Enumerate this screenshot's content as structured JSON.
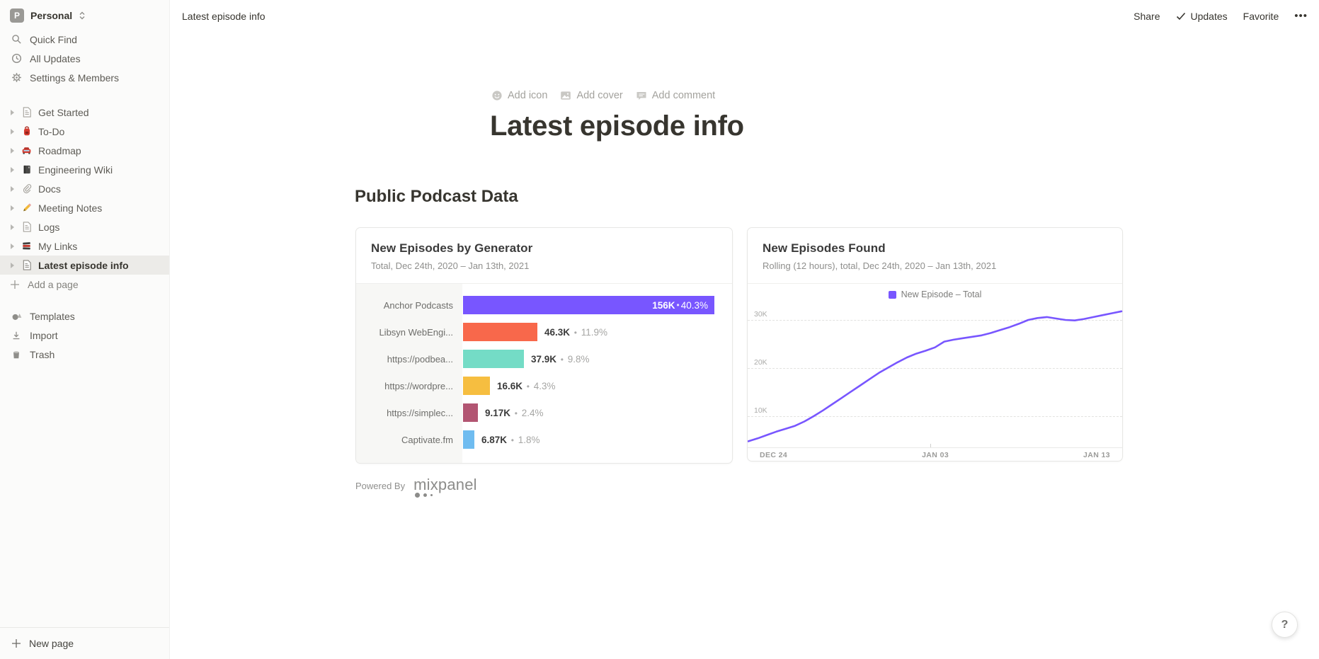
{
  "sidebar": {
    "workspace": {
      "initial": "P",
      "name": "Personal"
    },
    "top_items": [
      {
        "label": "Quick Find"
      },
      {
        "label": "All Updates"
      },
      {
        "label": "Settings & Members"
      }
    ],
    "pages": [
      {
        "label": "Get Started"
      },
      {
        "label": "To-Do"
      },
      {
        "label": "Roadmap"
      },
      {
        "label": "Engineering Wiki"
      },
      {
        "label": "Docs"
      },
      {
        "label": "Meeting Notes"
      },
      {
        "label": "Logs"
      },
      {
        "label": "My Links"
      },
      {
        "label": "Latest episode info"
      }
    ],
    "add_page_label": "Add a page",
    "bottom_items": [
      {
        "label": "Templates"
      },
      {
        "label": "Import"
      },
      {
        "label": "Trash"
      }
    ],
    "new_page_label": "New page"
  },
  "topbar": {
    "breadcrumb": "Latest episode info",
    "share": "Share",
    "updates": "Updates",
    "favorite": "Favorite",
    "more": "•••"
  },
  "page": {
    "add_icon": "Add icon",
    "add_cover": "Add cover",
    "add_comment": "Add comment",
    "title": "Latest episode info",
    "section_heading": "Public Podcast Data",
    "powered_by": "Powered By",
    "brand": "mixpanel"
  },
  "help": {
    "label": "?"
  },
  "chart_data": [
    {
      "type": "bar",
      "orientation": "horizontal",
      "title": "New Episodes by Generator",
      "subtitle": "Total, Dec 24th, 2020 – Jan 13th, 2021",
      "categories": [
        "Anchor Podcasts",
        "Libsyn WebEngi...",
        "https://podbea...",
        "https://wordpre...",
        "https://simplec...",
        "Captivate.fm"
      ],
      "values": [
        156000,
        46300,
        37900,
        16600,
        9170,
        6870
      ],
      "value_labels": [
        "156K",
        "46.3K",
        "37.9K",
        "16.6K",
        "9.17K",
        "6.87K"
      ],
      "percent_labels": [
        "40.3%",
        "11.9%",
        "9.8%",
        "4.3%",
        "2.4%",
        "1.8%"
      ],
      "separator": "•",
      "bar_colors": [
        "#7856FF",
        "#F8684B",
        "#74DCC6",
        "#F6BE40",
        "#B25572",
        "#6FBCF0"
      ],
      "xlim": [
        0,
        156000
      ]
    },
    {
      "type": "line",
      "title": "New Episodes Found",
      "subtitle": "Rolling (12 hours), total, Dec 24th, 2020 – Jan 13th, 2021",
      "legend": [
        "New Episode – Total"
      ],
      "line_color": "#7856FF",
      "x_ticks": [
        "DEC 24",
        "JAN 03",
        "JAN 13"
      ],
      "y_ticks": [
        "30K",
        "20K",
        "10K"
      ],
      "ylim": [
        0,
        35000
      ],
      "values_k": [
        4.8,
        5.4,
        6.1,
        6.8,
        7.4,
        8.0,
        8.9,
        10.0,
        11.2,
        12.5,
        13.8,
        15.1,
        16.4,
        17.7,
        19.0,
        20.1,
        21.2,
        22.2,
        23.0,
        23.6,
        24.3,
        25.5,
        25.9,
        26.2,
        26.5,
        26.8,
        27.3,
        27.9,
        28.5,
        29.2,
        30.0,
        30.4,
        30.6,
        30.3,
        30.0,
        29.9,
        30.2,
        30.6,
        31.0,
        31.4,
        31.8
      ]
    }
  ]
}
